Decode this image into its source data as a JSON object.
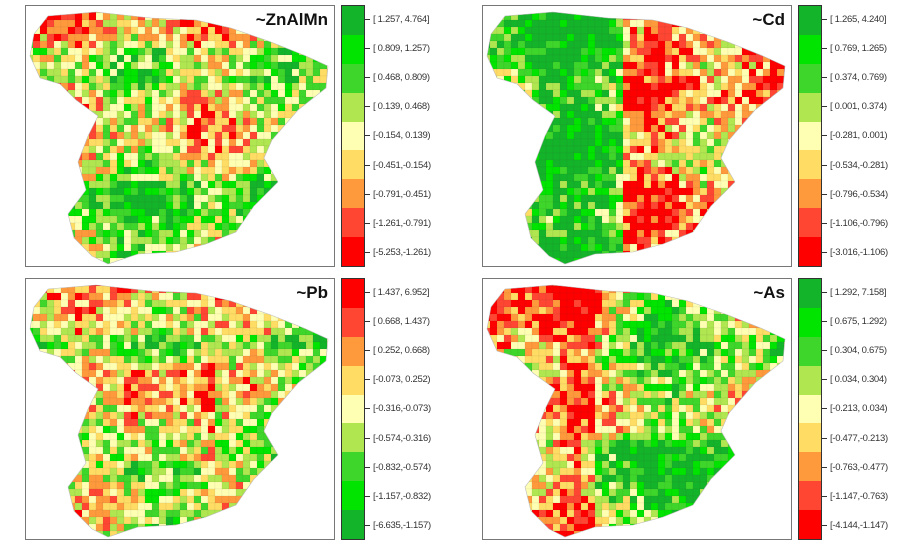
{
  "panels": [
    {
      "title": "~ZnAlMn",
      "colors": [
        "#14b42a",
        "#00e400",
        "#3ed62a",
        "#b0e650",
        "#ffffb4",
        "#ffdc64",
        "#ff9a3c",
        "#ff4632",
        "#ff0000"
      ],
      "legend": [
        "[ 1.257, 4.764]",
        "[ 0.809, 1.257)",
        "[ 0.468, 0.809)",
        "[ 0.139, 0.468)",
        "[-0.154, 0.139)",
        "[-0.451,-0.154)",
        "[-0.791,-0.451)",
        "[-1.261,-0.791)",
        "[-5.253,-1.261)"
      ]
    },
    {
      "title": "~Cd",
      "colors": [
        "#14b42a",
        "#00e400",
        "#3ed62a",
        "#b0e650",
        "#ffffb4",
        "#ffdc64",
        "#ff9a3c",
        "#ff4632",
        "#ff0000"
      ],
      "legend": [
        "[ 1.265, 4.240]",
        "[ 0.769, 1.265)",
        "[ 0.374, 0.769)",
        "[ 0.001, 0.374)",
        "[-0.281, 0.001)",
        "[-0.534,-0.281)",
        "[-0.796,-0.534)",
        "[-1.106,-0.796)",
        "[-3.016,-1.106)"
      ]
    },
    {
      "title": "~Pb",
      "colors": [
        "#ff0000",
        "#ff4632",
        "#ff9a3c",
        "#ffdc64",
        "#ffffb4",
        "#b0e650",
        "#3ed62a",
        "#00e400",
        "#14b42a"
      ],
      "legend": [
        "[ 1.437, 6.952]",
        "[ 0.668, 1.437)",
        "[ 0.252, 0.668)",
        "[-0.073, 0.252)",
        "[-0.316,-0.073)",
        "[-0.574,-0.316)",
        "[-0.832,-0.574)",
        "[-1.157,-0.832)",
        "[-6.635,-1.157)"
      ]
    },
    {
      "title": "~As",
      "colors": [
        "#14b42a",
        "#00e400",
        "#3ed62a",
        "#b0e650",
        "#ffffb4",
        "#ffdc64",
        "#ff9a3c",
        "#ff4632",
        "#ff0000"
      ],
      "legend": [
        "[ 1.292, 7.158]",
        "[ 0.675, 1.292)",
        "[ 0.304, 0.675)",
        "[ 0.034, 0.304)",
        "[-0.213, 0.034)",
        "[-0.477,-0.213)",
        "[-0.763,-0.477)",
        "[-1.147,-0.763)",
        "[-4.144,-1.147)"
      ]
    }
  ]
}
